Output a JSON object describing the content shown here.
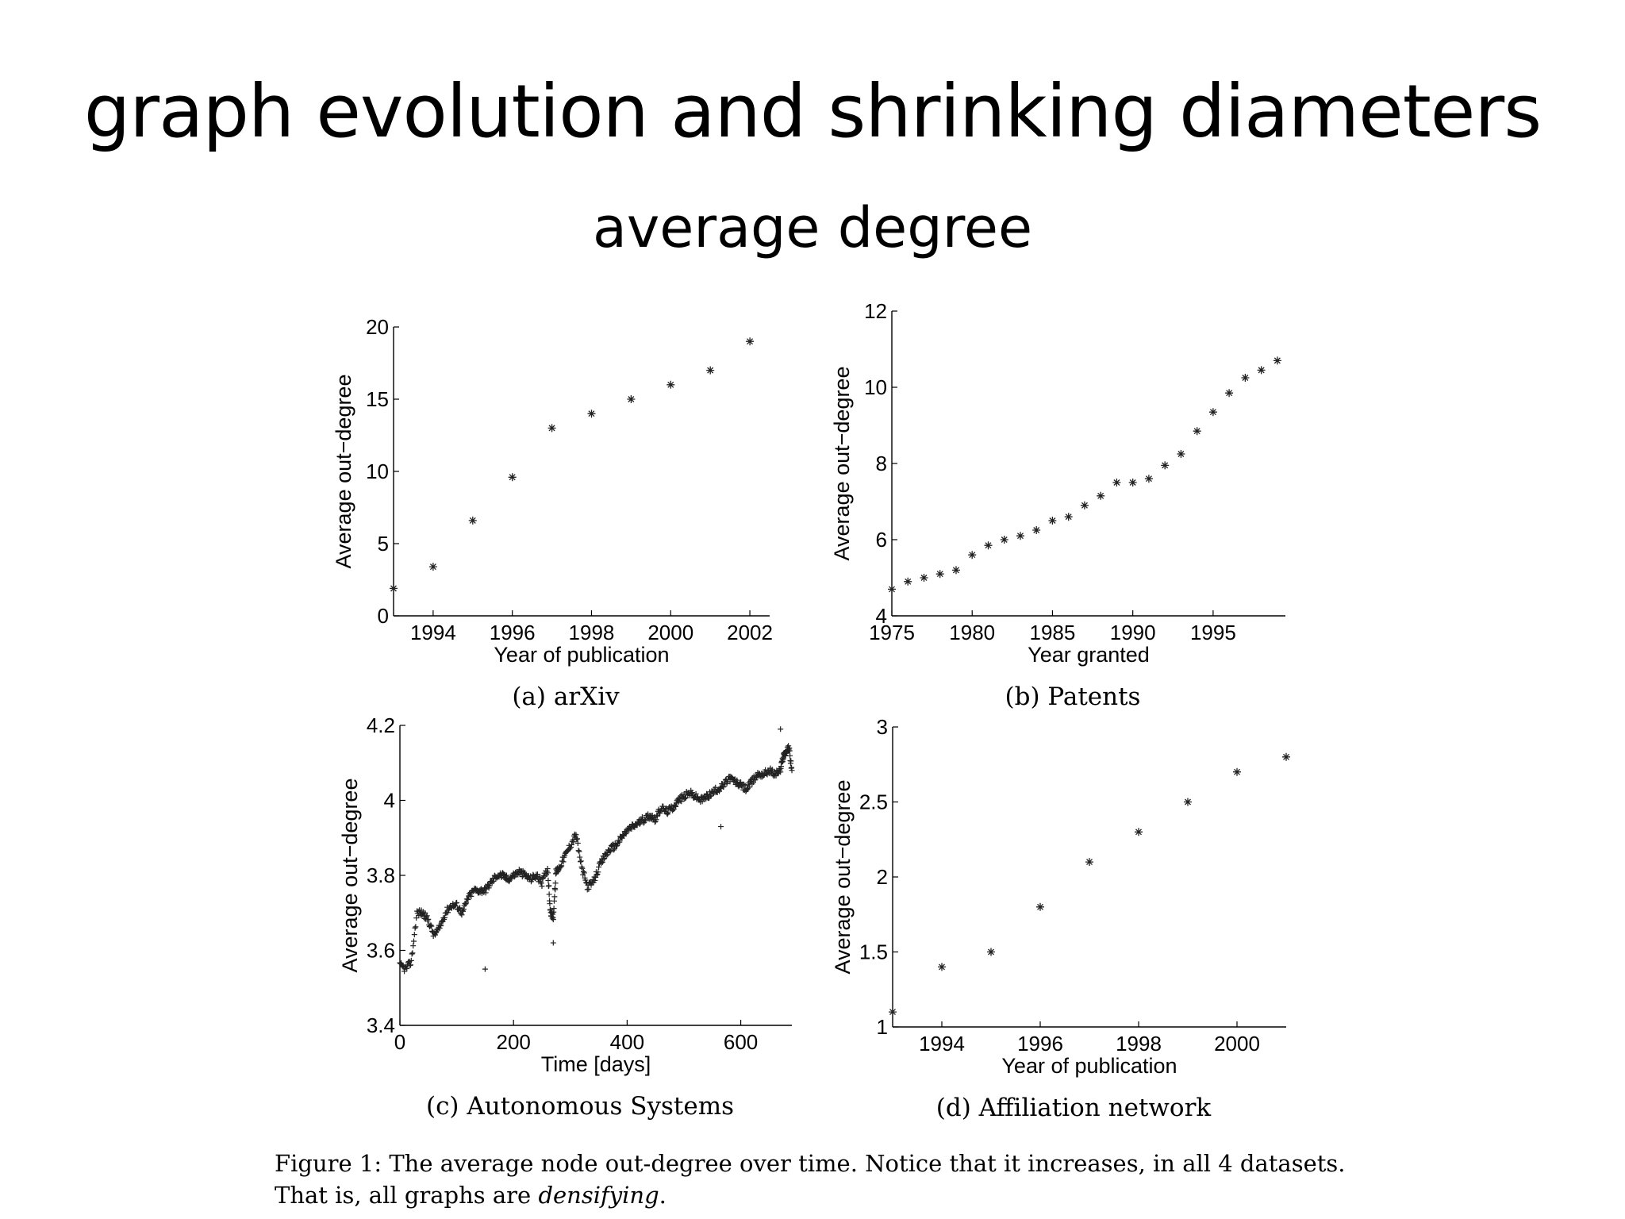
{
  "slide": {
    "title": "graph evolution and shrinking diameters",
    "subtitle": "average degree"
  },
  "figure_caption": {
    "line1": "Figure 1: The average node out-degree over time. Notice that it increases, in all 4 datasets.",
    "line2_prefix": "That is, all graphs are ",
    "line2_emphasis": "densifying",
    "line2_suffix": "."
  },
  "chart_data": [
    {
      "id": "arxiv",
      "type": "scatter",
      "marker": "*",
      "caption": "(a) arXiv",
      "xlabel": "Year of publication",
      "ylabel": "Average out−degree",
      "xlim": [
        1993,
        2002.5
      ],
      "ylim": [
        0,
        20
      ],
      "xticks": [
        1994,
        1996,
        1998,
        2000,
        2002
      ],
      "xtick_labels": [
        "1994",
        "1996",
        "1998",
        "2000",
        "2002"
      ],
      "yticks": [
        0,
        5,
        10,
        15,
        20
      ],
      "ytick_labels": [
        "0",
        "5",
        "10",
        "15",
        "20"
      ],
      "x": [
        1993,
        1994,
        1995,
        1996,
        1997,
        1998,
        1999,
        2000,
        2001,
        2002
      ],
      "y": [
        1.9,
        3.4,
        6.6,
        9.6,
        13.0,
        14.0,
        15.0,
        16.0,
        17.0,
        19.0
      ]
    },
    {
      "id": "patents",
      "type": "scatter",
      "marker": "*",
      "caption": "(b) Patents",
      "xlabel": "Year granted",
      "ylabel": "Average out−degree",
      "xlim": [
        1975,
        1999.5
      ],
      "ylim": [
        4,
        12
      ],
      "xticks": [
        1975,
        1980,
        1985,
        1990,
        1995
      ],
      "xtick_labels": [
        "1975",
        "1980",
        "1985",
        "1990",
        "1995"
      ],
      "yticks": [
        4,
        6,
        8,
        10,
        12
      ],
      "ytick_labels": [
        "4",
        "6",
        "8",
        "10",
        "12"
      ],
      "x": [
        1975,
        1976,
        1977,
        1978,
        1979,
        1980,
        1981,
        1982,
        1983,
        1984,
        1985,
        1986,
        1987,
        1988,
        1989,
        1990,
        1991,
        1992,
        1993,
        1994,
        1995,
        1996,
        1997,
        1998,
        1999
      ],
      "y": [
        4.7,
        4.9,
        5.0,
        5.1,
        5.2,
        5.6,
        5.85,
        6.0,
        6.1,
        6.25,
        6.5,
        6.6,
        6.9,
        7.15,
        7.5,
        7.5,
        7.6,
        7.95,
        8.25,
        8.85,
        9.35,
        9.85,
        10.25,
        10.45,
        10.7
      ]
    },
    {
      "id": "autonomous-systems",
      "type": "scatter",
      "marker": "+",
      "caption": "(c) Autonomous Systems",
      "xlabel": "Time [days]",
      "ylabel": "Average out−degree",
      "xlim": [
        0,
        690
      ],
      "ylim": [
        3.4,
        4.2
      ],
      "xticks": [
        0,
        200,
        400,
        600
      ],
      "xtick_labels": [
        "0",
        "200",
        "400",
        "600"
      ],
      "yticks": [
        3.4,
        3.6,
        3.8,
        4.0,
        4.2
      ],
      "ytick_labels": [
        "3.4",
        "3.6",
        "3.8",
        "4",
        "4.2"
      ],
      "x": [
        0,
        10,
        20,
        30,
        40,
        50,
        60,
        70,
        80,
        90,
        100,
        110,
        120,
        130,
        140,
        150,
        160,
        170,
        180,
        190,
        200,
        210,
        220,
        230,
        240,
        250,
        260,
        265,
        270,
        275,
        280,
        290,
        300,
        310,
        320,
        330,
        340,
        350,
        360,
        370,
        380,
        390,
        400,
        410,
        420,
        430,
        440,
        450,
        460,
        470,
        480,
        490,
        500,
        510,
        520,
        530,
        540,
        550,
        560,
        570,
        580,
        590,
        600,
        610,
        620,
        630,
        640,
        650,
        660,
        670,
        675,
        680,
        685,
        690
      ],
      "y": [
        3.56,
        3.55,
        3.57,
        3.7,
        3.7,
        3.68,
        3.64,
        3.66,
        3.7,
        3.72,
        3.72,
        3.7,
        3.74,
        3.76,
        3.76,
        3.76,
        3.78,
        3.8,
        3.8,
        3.79,
        3.8,
        3.81,
        3.8,
        3.79,
        3.8,
        3.78,
        3.82,
        3.7,
        3.69,
        3.81,
        3.82,
        3.85,
        3.88,
        3.91,
        3.82,
        3.77,
        3.78,
        3.82,
        3.85,
        3.87,
        3.88,
        3.9,
        3.92,
        3.93,
        3.94,
        3.95,
        3.96,
        3.95,
        3.98,
        3.97,
        3.98,
        4.0,
        4.01,
        4.02,
        4.01,
        4.0,
        4.01,
        4.02,
        4.03,
        4.04,
        4.06,
        4.05,
        4.04,
        4.03,
        4.05,
        4.07,
        4.07,
        4.08,
        4.07,
        4.08,
        4.12,
        4.13,
        4.14,
        4.08
      ],
      "outliers_x": [
        150,
        270,
        565,
        670
      ],
      "outliers_y": [
        3.55,
        3.62,
        3.93,
        4.19
      ]
    },
    {
      "id": "affiliation-network",
      "type": "scatter",
      "marker": "*",
      "caption": "(d) Affiliation network",
      "xlabel": "Year of publication",
      "ylabel": "Average out−degree",
      "xlim": [
        1993,
        2001
      ],
      "ylim": [
        1,
        3
      ],
      "xticks": [
        1994,
        1996,
        1998,
        2000
      ],
      "xtick_labels": [
        "1994",
        "1996",
        "1998",
        "2000"
      ],
      "yticks": [
        1,
        1.5,
        2,
        2.5,
        3
      ],
      "ytick_labels": [
        "1",
        "1.5",
        "2",
        "2.5",
        "3"
      ],
      "x": [
        1993,
        1994,
        1995,
        1996,
        1997,
        1998,
        1999,
        2000,
        2001
      ],
      "y": [
        1.1,
        1.4,
        1.5,
        1.8,
        2.1,
        2.3,
        2.5,
        2.7,
        2.8
      ]
    }
  ]
}
